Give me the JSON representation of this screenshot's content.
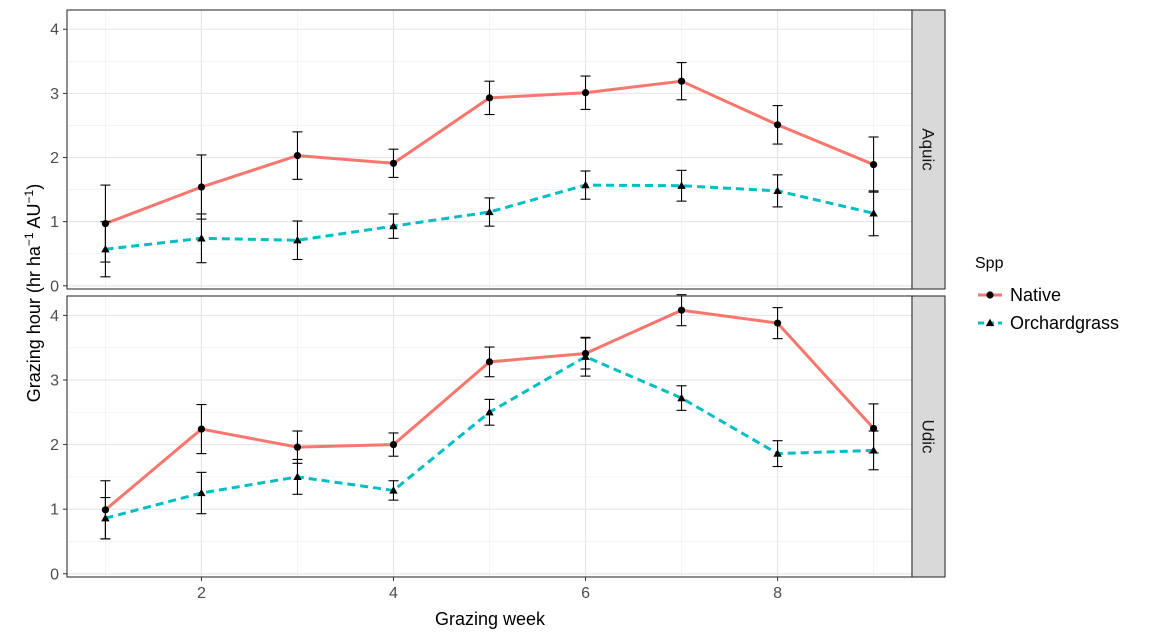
{
  "chart_data": {
    "type": "line",
    "xlabel": "Grazing week",
    "ylabel_parts": [
      "Grazing hour (hr  ha",
      "−1",
      " AU",
      "−1",
      ")"
    ],
    "x_ticks": [
      2,
      4,
      6,
      8
    ],
    "y_ticks": [
      0,
      1,
      2,
      3,
      4
    ],
    "xlim": [
      0.6,
      9.4
    ],
    "ylim": [
      -0.05,
      4.3
    ],
    "legend": {
      "title": "Spp",
      "placement": "right",
      "entries": [
        {
          "name": "Native",
          "color": "#F8766D",
          "shape": "circle",
          "dash": "solid"
        },
        {
          "name": "Orchardgrass",
          "color": "#00BFC4",
          "shape": "triangle",
          "dash": "dashed"
        }
      ]
    },
    "panels": [
      {
        "strip": "Aquic",
        "series": [
          {
            "name": "Native",
            "x": [
              1,
              2,
              3,
              4,
              5,
              6,
              7,
              8,
              9
            ],
            "y": [
              0.97,
              1.54,
              2.03,
              1.91,
              2.93,
              3.01,
              3.19,
              2.51,
              1.89
            ],
            "err": [
              0.6,
              0.5,
              0.37,
              0.22,
              0.26,
              0.26,
              0.29,
              0.3,
              0.43
            ]
          },
          {
            "name": "Orchardgrass",
            "x": [
              1,
              2,
              3,
              4,
              5,
              6,
              7,
              8,
              9
            ],
            "y": [
              0.57,
              0.74,
              0.71,
              0.93,
              1.15,
              1.57,
              1.56,
              1.48,
              1.13
            ],
            "err": [
              0.43,
              0.38,
              0.3,
              0.19,
              0.22,
              0.22,
              0.24,
              0.25,
              0.35
            ]
          }
        ]
      },
      {
        "strip": "Udic",
        "series": [
          {
            "name": "Native",
            "x": [
              1,
              2,
              3,
              4,
              5,
              6,
              7,
              8,
              9
            ],
            "y": [
              0.99,
              2.24,
              1.96,
              2.0,
              3.28,
              3.41,
              4.08,
              3.88,
              2.25
            ],
            "err": [
              0.45,
              0.38,
              0.25,
              0.18,
              0.23,
              0.24,
              0.24,
              0.24,
              0.38
            ]
          },
          {
            "name": "Orchardgrass",
            "x": [
              1,
              2,
              3,
              4,
              5,
              6,
              7,
              8,
              9
            ],
            "y": [
              0.86,
              1.25,
              1.5,
              1.29,
              2.5,
              3.36,
              2.72,
              1.86,
              1.91
            ],
            "err": [
              0.32,
              0.32,
              0.27,
              0.15,
              0.2,
              0.3,
              0.19,
              0.2,
              0.3
            ]
          }
        ]
      }
    ],
    "grid": true
  }
}
